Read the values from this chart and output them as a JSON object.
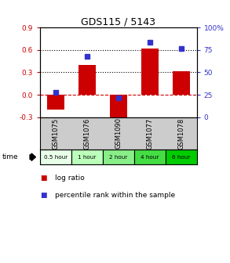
{
  "title": "GDS115 / 5143",
  "categories": [
    "GSM1075",
    "GSM1076",
    "GSM1090",
    "GSM1077",
    "GSM1078"
  ],
  "time_labels": [
    "0.5 hour",
    "1 hour",
    "2 hour",
    "4 hour",
    "6 hour"
  ],
  "log_ratios": [
    -0.2,
    0.4,
    -0.37,
    0.62,
    0.32
  ],
  "percentiles": [
    28,
    68,
    22,
    84,
    77
  ],
  "ylim_left": [
    -0.3,
    0.9
  ],
  "ylim_right": [
    0,
    100
  ],
  "left_ticks": [
    -0.3,
    0.0,
    0.3,
    0.6,
    0.9
  ],
  "right_ticks": [
    0,
    25,
    50,
    75,
    100
  ],
  "dotted_lines": [
    0.3,
    0.6
  ],
  "bar_color": "#cc0000",
  "dot_color": "#3333cc",
  "zero_line_color": "#cc0000",
  "bg_color": "#ffffff",
  "plot_bg": "#ffffff",
  "time_colors": [
    "#e8ffe8",
    "#bbffbb",
    "#88ee88",
    "#44dd44",
    "#00cc00"
  ],
  "gsm_bg": "#cccccc",
  "legend_log_color": "#cc0000",
  "legend_pct_color": "#3333cc",
  "bar_width": 0.55
}
